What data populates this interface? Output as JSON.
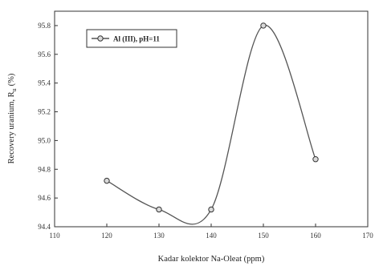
{
  "chart_data": {
    "type": "line",
    "title": "",
    "xlabel": "Kadar kolektor Na-Oleat (ppm)",
    "ylabel": "Recovery uranium, R",
    "ylabel_subscript": "u",
    "ylabel_unit": "(%)",
    "xlim": [
      110,
      170
    ],
    "ylim": [
      94.4,
      95.9
    ],
    "x_ticks": [
      110,
      120,
      130,
      140,
      150,
      160,
      170
    ],
    "y_ticks": [
      94.4,
      94.6,
      94.8,
      95.0,
      95.2,
      95.4,
      95.6,
      95.8
    ],
    "x_tick_labels": [
      "110",
      "120",
      "130",
      "140",
      "150",
      "160",
      "170"
    ],
    "y_tick_labels": [
      "94.4",
      "94.6",
      "94.8",
      "95.0",
      "95.2",
      "95.4",
      "95.6",
      "95.8"
    ],
    "grid": false,
    "legend_position": "top-left",
    "series": [
      {
        "name": "Al (III), pH=11",
        "color": "#555555",
        "marker": "circle",
        "x": [
          120,
          130,
          140,
          150,
          160
        ],
        "y": [
          94.72,
          94.52,
          94.52,
          95.8,
          94.87
        ]
      }
    ]
  }
}
